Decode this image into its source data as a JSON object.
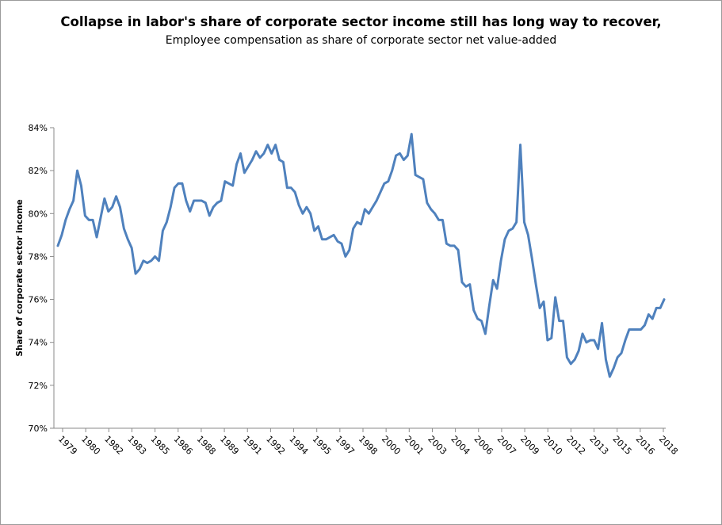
{
  "chart_data": {
    "type": "line",
    "title": "Collapse in labor's share of corporate sector income still has long way to recover,",
    "subtitle": "Employee compensation as share of corporate sector net value-added",
    "ylabel": "Share of corporate sector income",
    "xlabel": "",
    "ylim": [
      70,
      84
    ],
    "y_ticks": [
      "70%",
      "72%",
      "74%",
      "76%",
      "78%",
      "80%",
      "82%",
      "84%"
    ],
    "x_tick_labels": [
      "1979",
      "1980",
      "1982",
      "1983",
      "1985",
      "1986",
      "1988",
      "1989",
      "1991",
      "1992",
      "1994",
      "1995",
      "1997",
      "1998",
      "2000",
      "2001",
      "2003",
      "2004",
      "2006",
      "2007",
      "2009",
      "2010",
      "2012",
      "2013",
      "2015",
      "2016",
      "2018"
    ],
    "line_color": "#4F81BD",
    "grid": false,
    "legend": "none",
    "series": [
      {
        "values": [
          78.5,
          79.0,
          79.7,
          80.2,
          80.6,
          82.0,
          81.3,
          79.9,
          79.7,
          79.7,
          78.9,
          79.8,
          80.7,
          80.1,
          80.3,
          80.8,
          80.3,
          79.3,
          78.8,
          78.4,
          77.2,
          77.4,
          77.8,
          77.7,
          77.8,
          78.0,
          77.8,
          79.2,
          79.6,
          80.3,
          81.2,
          81.4,
          81.4,
          80.6,
          80.1,
          80.6,
          80.6,
          80.6,
          80.5,
          79.9,
          80.3,
          80.5,
          80.6,
          81.5,
          81.4,
          81.3,
          82.3,
          82.8,
          81.9,
          82.2,
          82.5,
          82.9,
          82.6,
          82.8,
          83.2,
          82.8,
          83.2,
          82.5,
          82.4,
          81.2,
          81.2,
          81.0,
          80.4,
          80.0,
          80.3,
          80.0,
          79.2,
          79.4,
          78.8,
          78.8,
          78.9,
          79.0,
          78.7,
          78.6,
          78.0,
          78.3,
          79.3,
          79.6,
          79.5,
          80.2,
          80.0,
          80.3,
          80.6,
          81.0,
          81.4,
          81.5,
          82.0,
          82.7,
          82.8,
          82.5,
          82.7,
          83.7,
          81.8,
          81.7,
          81.6,
          80.5,
          80.2,
          80.0,
          79.7,
          79.7,
          78.6,
          78.5,
          78.5,
          78.3,
          76.8,
          76.6,
          76.7,
          75.5,
          75.1,
          75.0,
          74.4,
          75.7,
          76.9,
          76.5,
          77.8,
          78.8,
          79.2,
          79.3,
          79.6,
          83.2,
          79.6,
          79.0,
          77.9,
          76.7,
          75.6,
          75.9,
          74.1,
          74.2,
          76.1,
          75.0,
          75.0,
          73.3,
          73.0,
          73.2,
          73.6,
          74.4,
          74.0,
          74.1,
          74.1,
          73.7,
          74.9,
          73.2,
          72.4,
          72.8,
          73.3,
          73.5,
          74.1,
          74.6,
          74.6,
          74.6,
          74.6,
          74.8,
          75.3,
          75.1,
          75.6,
          75.6,
          76.0
        ]
      }
    ]
  }
}
